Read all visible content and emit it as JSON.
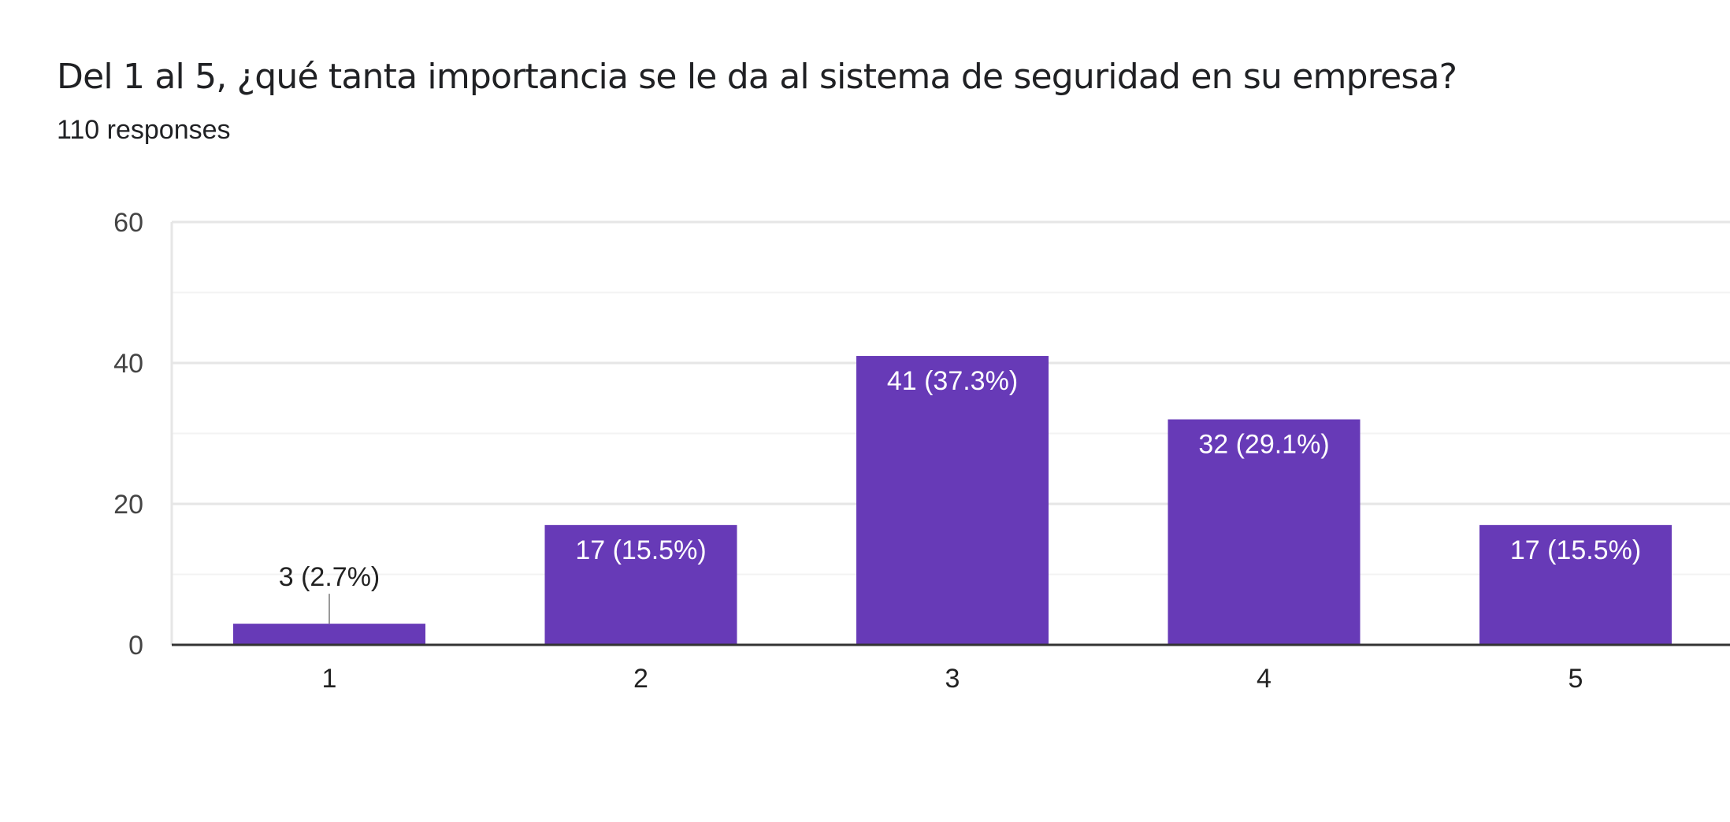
{
  "header": {
    "title": "Del 1 al 5, ¿qué tanta importancia se le da al sistema de seguridad en su empresa?",
    "responses": "110 responses"
  },
  "chart_data": {
    "type": "bar",
    "categories": [
      "1",
      "2",
      "3",
      "4",
      "5"
    ],
    "values": [
      3,
      17,
      41,
      32,
      17
    ],
    "data_labels": [
      "3 (2.7%)",
      "17 (15.5%)",
      "41 (37.3%)",
      "32 (29.1%)",
      "17 (15.5%)"
    ],
    "ylim": [
      0,
      60
    ],
    "yticks": [
      0,
      20,
      40,
      60
    ],
    "grid": true,
    "colors": {
      "bar": "#673ab7",
      "grid_major": "#e6e6e6",
      "grid_minor": "#f3f3f3",
      "axis": "#333333",
      "tick_text": "#444444",
      "label_inside": "#ffffff",
      "label_outside": "#222222"
    }
  }
}
